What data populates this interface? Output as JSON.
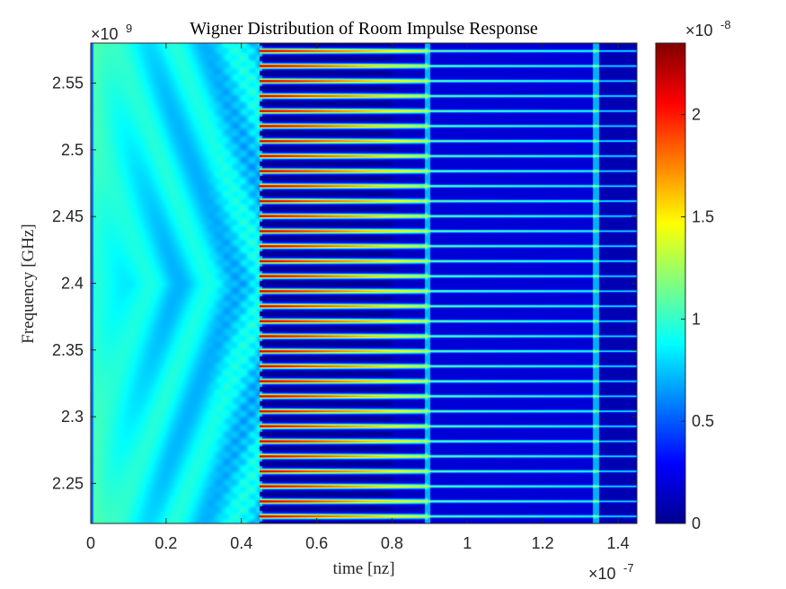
{
  "chart_data": {
    "type": "heatmap",
    "title": "Wigner Distribution of Room Impulse Response",
    "xlabel": "time [nz]",
    "ylabel": "Frequency [GHz]",
    "x_exponent": {
      "base": "×10",
      "power": "-7"
    },
    "y_exponent": {
      "base": "×10",
      "power": "9"
    },
    "colorbar_exponent": {
      "base": "×10",
      "power": "-8"
    },
    "xlim": [
      0,
      1.45
    ],
    "ylim": [
      2.22,
      2.58
    ],
    "clim": [
      0,
      2.35
    ],
    "colormap": "jet",
    "x_ticks": [
      0,
      0.2,
      0.4,
      0.6,
      0.8,
      1,
      1.2,
      1.4
    ],
    "x_tick_labels": [
      "0",
      "0.2",
      "0.4",
      "0.6",
      "0.8",
      "1",
      "1.2",
      "1.4"
    ],
    "y_ticks": [
      2.25,
      2.3,
      2.35,
      2.4,
      2.45,
      2.5,
      2.55
    ],
    "y_tick_labels": [
      "2.25",
      "2.3",
      "2.35",
      "2.4",
      "2.45",
      "2.5",
      "2.55"
    ],
    "colorbar_ticks": [
      0,
      0.5,
      1,
      1.5,
      2
    ],
    "colorbar_tick_labels": [
      "0",
      "0.5",
      "1",
      "1.5",
      "2"
    ],
    "reflection_times": [
      0.447,
      0.893,
      1.34
    ],
    "band_count": 32,
    "grid": false
  }
}
